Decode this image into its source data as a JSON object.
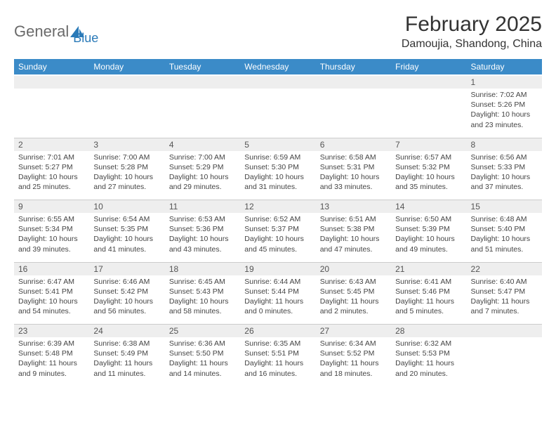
{
  "brand": {
    "part1": "General",
    "part2": "Blue"
  },
  "title": "February 2025",
  "location": "Damoujia, Shandong, China",
  "colors": {
    "header_bg": "#3b8bc8",
    "header_text": "#ffffff",
    "daynum_bg": "#eeeeee",
    "body_bg": "#ffffff",
    "text": "#333333",
    "logo_gray": "#6a6a6a",
    "logo_blue": "#2a7ab8"
  },
  "weekdays": [
    "Sunday",
    "Monday",
    "Tuesday",
    "Wednesday",
    "Thursday",
    "Friday",
    "Saturday"
  ],
  "weeks": [
    [
      null,
      null,
      null,
      null,
      null,
      null,
      {
        "d": "1",
        "sr": "7:02 AM",
        "ss": "5:26 PM",
        "dl": "10 hours and 23 minutes."
      }
    ],
    [
      {
        "d": "2",
        "sr": "7:01 AM",
        "ss": "5:27 PM",
        "dl": "10 hours and 25 minutes."
      },
      {
        "d": "3",
        "sr": "7:00 AM",
        "ss": "5:28 PM",
        "dl": "10 hours and 27 minutes."
      },
      {
        "d": "4",
        "sr": "7:00 AM",
        "ss": "5:29 PM",
        "dl": "10 hours and 29 minutes."
      },
      {
        "d": "5",
        "sr": "6:59 AM",
        "ss": "5:30 PM",
        "dl": "10 hours and 31 minutes."
      },
      {
        "d": "6",
        "sr": "6:58 AM",
        "ss": "5:31 PM",
        "dl": "10 hours and 33 minutes."
      },
      {
        "d": "7",
        "sr": "6:57 AM",
        "ss": "5:32 PM",
        "dl": "10 hours and 35 minutes."
      },
      {
        "d": "8",
        "sr": "6:56 AM",
        "ss": "5:33 PM",
        "dl": "10 hours and 37 minutes."
      }
    ],
    [
      {
        "d": "9",
        "sr": "6:55 AM",
        "ss": "5:34 PM",
        "dl": "10 hours and 39 minutes."
      },
      {
        "d": "10",
        "sr": "6:54 AM",
        "ss": "5:35 PM",
        "dl": "10 hours and 41 minutes."
      },
      {
        "d": "11",
        "sr": "6:53 AM",
        "ss": "5:36 PM",
        "dl": "10 hours and 43 minutes."
      },
      {
        "d": "12",
        "sr": "6:52 AM",
        "ss": "5:37 PM",
        "dl": "10 hours and 45 minutes."
      },
      {
        "d": "13",
        "sr": "6:51 AM",
        "ss": "5:38 PM",
        "dl": "10 hours and 47 minutes."
      },
      {
        "d": "14",
        "sr": "6:50 AM",
        "ss": "5:39 PM",
        "dl": "10 hours and 49 minutes."
      },
      {
        "d": "15",
        "sr": "6:48 AM",
        "ss": "5:40 PM",
        "dl": "10 hours and 51 minutes."
      }
    ],
    [
      {
        "d": "16",
        "sr": "6:47 AM",
        "ss": "5:41 PM",
        "dl": "10 hours and 54 minutes."
      },
      {
        "d": "17",
        "sr": "6:46 AM",
        "ss": "5:42 PM",
        "dl": "10 hours and 56 minutes."
      },
      {
        "d": "18",
        "sr": "6:45 AM",
        "ss": "5:43 PM",
        "dl": "10 hours and 58 minutes."
      },
      {
        "d": "19",
        "sr": "6:44 AM",
        "ss": "5:44 PM",
        "dl": "11 hours and 0 minutes."
      },
      {
        "d": "20",
        "sr": "6:43 AM",
        "ss": "5:45 PM",
        "dl": "11 hours and 2 minutes."
      },
      {
        "d": "21",
        "sr": "6:41 AM",
        "ss": "5:46 PM",
        "dl": "11 hours and 5 minutes."
      },
      {
        "d": "22",
        "sr": "6:40 AM",
        "ss": "5:47 PM",
        "dl": "11 hours and 7 minutes."
      }
    ],
    [
      {
        "d": "23",
        "sr": "6:39 AM",
        "ss": "5:48 PM",
        "dl": "11 hours and 9 minutes."
      },
      {
        "d": "24",
        "sr": "6:38 AM",
        "ss": "5:49 PM",
        "dl": "11 hours and 11 minutes."
      },
      {
        "d": "25",
        "sr": "6:36 AM",
        "ss": "5:50 PM",
        "dl": "11 hours and 14 minutes."
      },
      {
        "d": "26",
        "sr": "6:35 AM",
        "ss": "5:51 PM",
        "dl": "11 hours and 16 minutes."
      },
      {
        "d": "27",
        "sr": "6:34 AM",
        "ss": "5:52 PM",
        "dl": "11 hours and 18 minutes."
      },
      {
        "d": "28",
        "sr": "6:32 AM",
        "ss": "5:53 PM",
        "dl": "11 hours and 20 minutes."
      },
      null
    ]
  ],
  "labels": {
    "sunrise": "Sunrise:",
    "sunset": "Sunset:",
    "daylight": "Daylight:"
  }
}
